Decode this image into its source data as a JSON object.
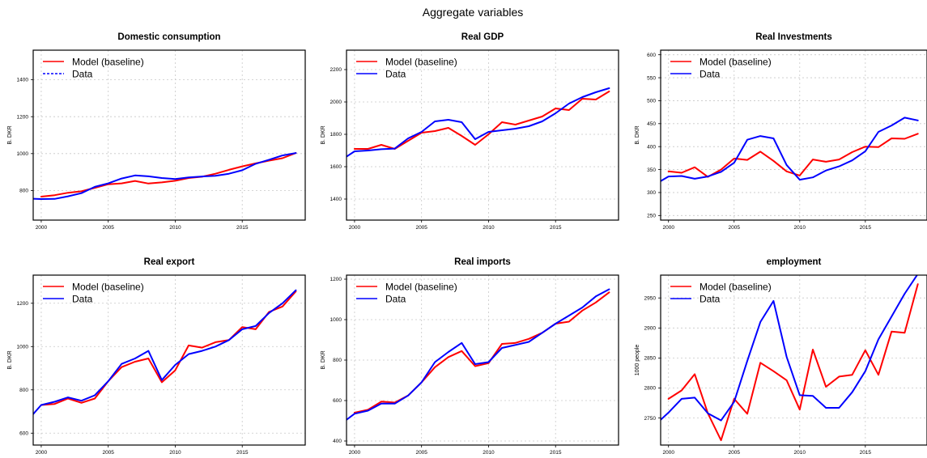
{
  "figure": {
    "title": "Aggregate variables"
  },
  "chart_data": [
    {
      "type": "line",
      "title": "Domestic consumption",
      "ylabel": "B. DKR",
      "xlim": [
        1999.4,
        2019.7
      ],
      "ylim": [
        640,
        1560
      ],
      "xticks": [
        2000,
        2005,
        2010,
        2015
      ],
      "yticks": [
        800,
        1000,
        1200,
        1400
      ],
      "x": [
        1999,
        2000,
        2001,
        2002,
        2003,
        2004,
        2005,
        2006,
        2007,
        2008,
        2009,
        2010,
        2011,
        2012,
        2013,
        2014,
        2015,
        2016,
        2017,
        2018,
        2019
      ],
      "series": [
        {
          "name": "Model (baseline)",
          "color": "#ff0000",
          "dash": false,
          "values": [
            null,
            767,
            775,
            788,
            796,
            815,
            834,
            839,
            852,
            838,
            844,
            853,
            868,
            875,
            891,
            912,
            931,
            947,
            962,
            975,
            1003
          ]
        },
        {
          "name": "Data",
          "color": "#0000ff",
          "dash": true,
          "values": [
            757,
            754,
            755,
            769,
            786,
            820,
            839,
            865,
            882,
            877,
            868,
            862,
            871,
            876,
            880,
            891,
            910,
            945,
            967,
            990,
            1003
          ]
        }
      ],
      "grid": true,
      "legend": "top-left"
    },
    {
      "type": "line",
      "title": "Real GDP",
      "ylabel": "B. DKR",
      "xlim": [
        1999.4,
        2019.7
      ],
      "ylim": [
        1270,
        2320
      ],
      "xticks": [
        2000,
        2005,
        2010,
        2015
      ],
      "yticks": [
        1400,
        1600,
        1800,
        2000,
        2200
      ],
      "x": [
        1999,
        2000,
        2001,
        2002,
        2003,
        2004,
        2005,
        2006,
        2007,
        2008,
        2009,
        2010,
        2011,
        2012,
        2013,
        2014,
        2015,
        2016,
        2017,
        2018,
        2019
      ],
      "series": [
        {
          "name": "Model (baseline)",
          "color": "#ff0000",
          "dash": false,
          "values": [
            null,
            1710,
            1710,
            1735,
            1710,
            1760,
            1810,
            1820,
            1840,
            1790,
            1735,
            1800,
            1875,
            1860,
            1885,
            1910,
            1960,
            1950,
            2020,
            2015,
            2065
          ]
        },
        {
          "name": "Data",
          "color": "#0000ff",
          "dash": false,
          "values": [
            1640,
            1695,
            1700,
            1708,
            1712,
            1775,
            1815,
            1880,
            1890,
            1875,
            1770,
            1815,
            1825,
            1835,
            1850,
            1880,
            1930,
            1990,
            2030,
            2060,
            2085
          ]
        }
      ],
      "grid": true,
      "legend": "top-left"
    },
    {
      "type": "line",
      "title": "Real Investments",
      "ylabel": "B. DKR",
      "xlim": [
        1999.4,
        2019.7
      ],
      "ylim": [
        240,
        610
      ],
      "xticks": [
        2000,
        2005,
        2010,
        2015
      ],
      "yticks": [
        250,
        300,
        350,
        400,
        450,
        500,
        550,
        600
      ],
      "x": [
        1999,
        2000,
        2001,
        2002,
        2003,
        2004,
        2005,
        2006,
        2007,
        2008,
        2009,
        2010,
        2011,
        2012,
        2013,
        2014,
        2015,
        2016,
        2017,
        2018,
        2019
      ],
      "series": [
        {
          "name": "Model (baseline)",
          "color": "#ff0000",
          "dash": false,
          "values": [
            null,
            346,
            343,
            355,
            334,
            350,
            374,
            371,
            389,
            369,
            346,
            337,
            372,
            367,
            372,
            388,
            400,
            399,
            418,
            417,
            428
          ]
        },
        {
          "name": "Data",
          "color": "#0000ff",
          "dash": false,
          "values": [
            318,
            335,
            336,
            330,
            335,
            345,
            365,
            415,
            423,
            418,
            360,
            328,
            333,
            348,
            357,
            370,
            390,
            432,
            446,
            463,
            457
          ]
        }
      ],
      "grid": true,
      "legend": "top-left"
    },
    {
      "type": "line",
      "title": "Real export",
      "ylabel": "B. DKR",
      "xlim": [
        1999.4,
        2019.7
      ],
      "ylim": [
        545,
        1330
      ],
      "xticks": [
        2000,
        2005,
        2010,
        2015
      ],
      "yticks": [
        600,
        800,
        1000,
        1200
      ],
      "x": [
        1999,
        2000,
        2001,
        2002,
        2003,
        2004,
        2005,
        2006,
        2007,
        2008,
        2009,
        2010,
        2011,
        2012,
        2013,
        2014,
        2015,
        2016,
        2017,
        2018,
        2019
      ],
      "series": [
        {
          "name": "Model (baseline)",
          "color": "#ff0000",
          "dash": false,
          "values": [
            null,
            730,
            735,
            760,
            740,
            760,
            840,
            905,
            930,
            945,
            835,
            890,
            1005,
            995,
            1020,
            1030,
            1090,
            1080,
            1160,
            1185,
            1255
          ]
        },
        {
          "name": "Data",
          "color": "#0000ff",
          "dash": false,
          "values": [
            660,
            730,
            745,
            765,
            750,
            775,
            840,
            920,
            945,
            980,
            845,
            915,
            965,
            980,
            1000,
            1030,
            1080,
            1095,
            1155,
            1200,
            1260
          ]
        }
      ],
      "grid": true,
      "legend": "top-left"
    },
    {
      "type": "line",
      "title": "Real imports",
      "ylabel": "B. DKR",
      "xlim": [
        1999.4,
        2019.7
      ],
      "ylim": [
        380,
        1220
      ],
      "xticks": [
        2000,
        2005,
        2010,
        2015
      ],
      "yticks": [
        400,
        600,
        800,
        1000,
        1200
      ],
      "x": [
        1999,
        2000,
        2001,
        2002,
        2003,
        2004,
        2005,
        2006,
        2007,
        2008,
        2009,
        2010,
        2011,
        2012,
        2013,
        2014,
        2015,
        2016,
        2017,
        2018,
        2019
      ],
      "series": [
        {
          "name": "Model (baseline)",
          "color": "#ff0000",
          "dash": false,
          "values": [
            null,
            540,
            555,
            595,
            590,
            625,
            690,
            765,
            815,
            845,
            770,
            785,
            880,
            885,
            905,
            935,
            980,
            990,
            1045,
            1085,
            1135
          ]
        },
        {
          "name": "Data",
          "color": "#0000ff",
          "dash": false,
          "values": [
            485,
            535,
            550,
            585,
            585,
            625,
            690,
            790,
            840,
            885,
            780,
            790,
            860,
            875,
            890,
            935,
            980,
            1020,
            1060,
            1115,
            1150
          ]
        }
      ],
      "grid": true,
      "legend": "top-left"
    },
    {
      "type": "line",
      "title": "employment",
      "ylabel": "1000 people",
      "xlim": [
        1999.4,
        2019.7
      ],
      "ylim": [
        2705,
        2988
      ],
      "xticks": [
        2000,
        2005,
        2010,
        2015
      ],
      "yticks": [
        2750,
        2800,
        2850,
        2900,
        2950
      ],
      "x": [
        1999,
        2000,
        2001,
        2002,
        2003,
        2004,
        2005,
        2006,
        2007,
        2008,
        2009,
        2010,
        2011,
        2012,
        2013,
        2014,
        2015,
        2016,
        2017,
        2018,
        2019
      ],
      "series": [
        {
          "name": "Model (baseline)",
          "color": "#ff0000",
          "dash": false,
          "values": [
            null,
            2782,
            2796,
            2823,
            2758,
            2713,
            2782,
            2757,
            2842,
            2828,
            2813,
            2764,
            2864,
            2802,
            2819,
            2822,
            2863,
            2822,
            2894,
            2892,
            2973
          ]
        },
        {
          "name": "Data",
          "color": "#0000ff",
          "dash": false,
          "values": [
            2739,
            2759,
            2782,
            2784,
            2758,
            2746,
            2777,
            2845,
            2910,
            2945,
            2852,
            2788,
            2787,
            2767,
            2767,
            2793,
            2828,
            2881,
            2919,
            2957,
            2990
          ]
        }
      ],
      "grid": true,
      "legend": "top-left"
    }
  ]
}
